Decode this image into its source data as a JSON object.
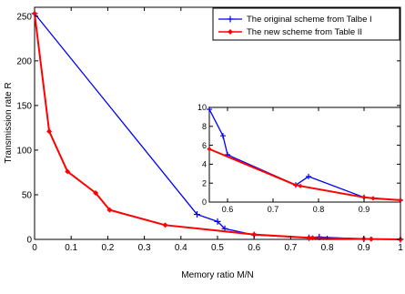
{
  "chart_data": [
    {
      "type": "line",
      "title": "",
      "xlabel": "Memory ratio M/N",
      "ylabel": "Transmission rate R",
      "xlim": [
        0,
        1
      ],
      "ylim": [
        0,
        260
      ],
      "x_ticks": [
        "0",
        "0.1",
        "0.2",
        "0.3",
        "0.4",
        "0.5",
        "0.6",
        "0.7",
        "0.8",
        "0.9",
        "1"
      ],
      "x_tick_values": [
        0,
        0.1,
        0.2,
        0.3,
        0.4,
        0.5,
        0.6,
        0.7,
        0.8,
        0.9,
        1.0
      ],
      "y_ticks": [
        "0",
        "50",
        "100",
        "150",
        "200",
        "250"
      ],
      "y_tick_values": [
        0,
        50,
        100,
        150,
        200,
        250
      ],
      "grid": false,
      "legend_position": "top-right",
      "series": [
        {
          "name": "The original scheme from Talbe I",
          "color": "#0000ff",
          "marker": "plus",
          "x": [
            0,
            0.444,
            0.5,
            0.52,
            0.6,
            0.75,
            0.778,
            0.9,
            1.0
          ],
          "y": [
            253,
            28,
            20,
            12,
            5,
            1.8,
            2.7,
            0.5,
            0
          ]
        },
        {
          "name": "The new scheme  from Table II",
          "color": "#ff0000",
          "marker": "diamond",
          "x": [
            0,
            0.04,
            0.09,
            0.167,
            0.205,
            0.357,
            0.6,
            0.75,
            0.76,
            0.9,
            0.92,
            1.0
          ],
          "y": [
            253,
            121,
            76,
            52,
            33,
            16,
            5.5,
            1.8,
            1.7,
            0.5,
            0.4,
            0
          ]
        }
      ]
    },
    {
      "type": "line",
      "title": "",
      "xlabel": "",
      "ylabel": "",
      "xlim": [
        0.56,
        0.98
      ],
      "ylim": [
        0,
        10
      ],
      "x_ticks": [
        "0.6",
        "0.7",
        "0.8",
        "0.9"
      ],
      "x_tick_values": [
        0.6,
        0.7,
        0.8,
        0.9
      ],
      "y_ticks": [
        "0",
        "2",
        "4",
        "6",
        "8",
        "10"
      ],
      "y_tick_values": [
        0,
        2,
        4,
        6,
        8,
        10
      ],
      "grid": false,
      "series": [
        {
          "name": "",
          "color": "#0000ff",
          "marker": "plus",
          "x": [
            0.56,
            0.59,
            0.6,
            0.75,
            0.778,
            0.9,
            0.98
          ],
          "y": [
            9.8,
            7,
            5,
            1.8,
            2.7,
            0.5,
            0.2
          ]
        },
        {
          "name": "",
          "color": "#ff0000",
          "marker": "diamond",
          "x": [
            0.56,
            0.75,
            0.76,
            0.9,
            0.92,
            0.98
          ],
          "y": [
            5.6,
            1.8,
            1.7,
            0.5,
            0.4,
            0.2
          ]
        }
      ]
    }
  ]
}
